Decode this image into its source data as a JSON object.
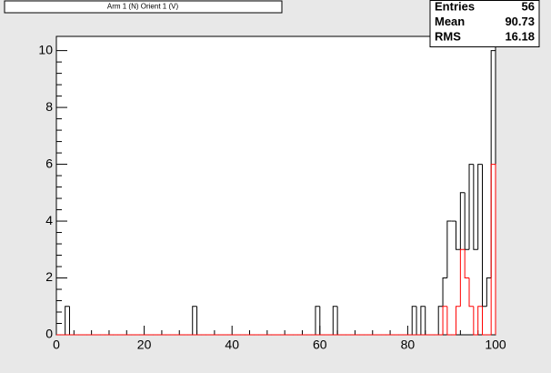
{
  "chart_data": {
    "type": "histogram",
    "title": "Arm 1 (N) Orient 1 (V)",
    "stats": [
      {
        "label": "Entries",
        "value": "56"
      },
      {
        "label": "Mean",
        "value": "90.73"
      },
      {
        "label": "RMS",
        "value": "16.18"
      }
    ],
    "bins": [
      0,
      1,
      2,
      3,
      4,
      5,
      6,
      7,
      8,
      9,
      10,
      11,
      12,
      13,
      14,
      15,
      16,
      17,
      18,
      19,
      20,
      21,
      22,
      23,
      24,
      25,
      26,
      27,
      28,
      29,
      30,
      31,
      32,
      33,
      34,
      35,
      36,
      37,
      38,
      39,
      40,
      41,
      42,
      43,
      44,
      45,
      46,
      47,
      48,
      49,
      50,
      51,
      52,
      53,
      54,
      55,
      56,
      57,
      58,
      59,
      60,
      61,
      62,
      63,
      64,
      65,
      66,
      67,
      68,
      69,
      70,
      71,
      72,
      73,
      74,
      75,
      76,
      77,
      78,
      79,
      80,
      81,
      82,
      83,
      84,
      85,
      86,
      87,
      88,
      89,
      90,
      91,
      92,
      93,
      94,
      95,
      96,
      97,
      98,
      99,
      100
    ],
    "series": [
      {
        "color": "#000000",
        "values": [
          0,
          0,
          1,
          0,
          0,
          0,
          0,
          0,
          0,
          0,
          0,
          0,
          0,
          0,
          0,
          0,
          0,
          0,
          0,
          0,
          0,
          0,
          0,
          0,
          0,
          0,
          0,
          0,
          0,
          0,
          0,
          1,
          0,
          0,
          0,
          0,
          0,
          0,
          0,
          0,
          0,
          0,
          0,
          0,
          0,
          0,
          0,
          0,
          0,
          0,
          0,
          0,
          0,
          0,
          0,
          0,
          0,
          0,
          0,
          1,
          0,
          0,
          0,
          1,
          0,
          0,
          0,
          0,
          0,
          0,
          0,
          0,
          0,
          0,
          0,
          0,
          0,
          0,
          0,
          0,
          0,
          1,
          0,
          1,
          0,
          0,
          0,
          1,
          2,
          4,
          4,
          3,
          5,
          3,
          6,
          3,
          6,
          1,
          2,
          10
        ]
      },
      {
        "color": "#ff0000",
        "values": [
          0,
          0,
          0,
          0,
          0,
          0,
          0,
          0,
          0,
          0,
          0,
          0,
          0,
          0,
          0,
          0,
          0,
          0,
          0,
          0,
          0,
          0,
          0,
          0,
          0,
          0,
          0,
          0,
          0,
          0,
          0,
          0,
          0,
          0,
          0,
          0,
          0,
          0,
          0,
          0,
          0,
          0,
          0,
          0,
          0,
          0,
          0,
          0,
          0,
          0,
          0,
          0,
          0,
          0,
          0,
          0,
          0,
          0,
          0,
          0,
          0,
          0,
          0,
          0,
          0,
          0,
          0,
          0,
          0,
          0,
          0,
          0,
          0,
          0,
          0,
          0,
          0,
          0,
          0,
          0,
          0,
          0,
          0,
          0,
          0,
          0,
          0,
          0,
          1,
          0,
          0,
          1,
          3,
          2,
          1,
          0,
          1,
          0,
          0,
          6
        ]
      }
    ],
    "xlim": [
      0,
      100
    ],
    "xticks": [
      0,
      20,
      40,
      60,
      80,
      100
    ],
    "ylim": [
      0,
      10.5
    ],
    "yticks": [
      0,
      2,
      4,
      6,
      8,
      10
    ]
  }
}
